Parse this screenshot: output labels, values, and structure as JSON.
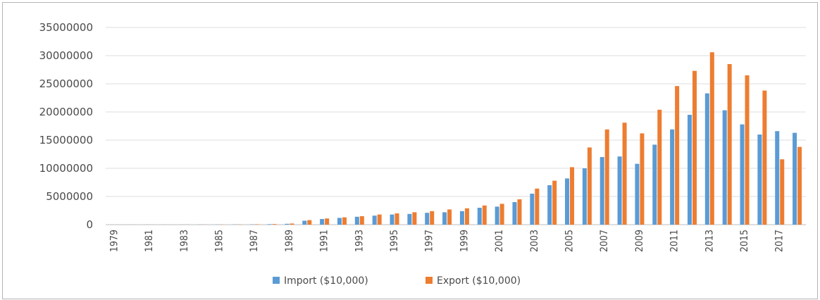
{
  "chart_data": {
    "type": "bar",
    "title": "",
    "xlabel": "",
    "ylabel": "",
    "ylim": [
      0,
      35000000
    ],
    "yticks": [
      0,
      5000000,
      10000000,
      15000000,
      20000000,
      25000000,
      30000000,
      35000000
    ],
    "grid": true,
    "legend_position": "bottom",
    "categories": [
      "1979",
      "1980",
      "1981",
      "1982",
      "1983",
      "1984",
      "1985",
      "1986",
      "1987",
      "1988",
      "1989",
      "1990",
      "1991",
      "1992",
      "1993",
      "1994",
      "1995",
      "1996",
      "1997",
      "1998",
      "1999",
      "2000",
      "2001",
      "2002",
      "2003",
      "2004",
      "2005",
      "2006",
      "2007",
      "2008",
      "2009",
      "2010",
      "2011",
      "2012",
      "2013",
      "2014",
      "2015",
      "2016",
      "2017",
      "2018"
    ],
    "xtick_labels": [
      "1979",
      "1981",
      "1983",
      "1985",
      "1987",
      "1989",
      "1991",
      "1993",
      "1995",
      "1997",
      "1999",
      "2001",
      "2003",
      "2005",
      "2007",
      "2009",
      "2011",
      "2013",
      "2015",
      "2017"
    ],
    "series": [
      {
        "name": "Import ($10,000)",
        "color": "#5b9bd5",
        "values": [
          5000,
          8000,
          12000,
          15000,
          20000,
          25000,
          30000,
          40000,
          60000,
          90000,
          150000,
          700000,
          1000000,
          1200000,
          1400000,
          1600000,
          1800000,
          1900000,
          2100000,
          2200000,
          2400000,
          3000000,
          3200000,
          4000000,
          5500000,
          7000000,
          8200000,
          10000000,
          12000000,
          12100000,
          10800000,
          14200000,
          16900000,
          19500000,
          23300000,
          20300000,
          17800000,
          16000000,
          16600000,
          16300000
        ]
      },
      {
        "name": "Export ($10,000)",
        "color": "#ed7d31",
        "values": [
          4000,
          7000,
          10000,
          13000,
          18000,
          22000,
          28000,
          40000,
          70000,
          110000,
          200000,
          800000,
          1100000,
          1300000,
          1500000,
          1800000,
          2000000,
          2200000,
          2400000,
          2700000,
          2900000,
          3400000,
          3700000,
          4500000,
          6400000,
          7800000,
          10200000,
          13700000,
          16900000,
          18100000,
          16200000,
          20400000,
          24600000,
          27300000,
          30600000,
          28500000,
          26500000,
          23800000,
          11600000,
          13800000
        ]
      }
    ]
  }
}
